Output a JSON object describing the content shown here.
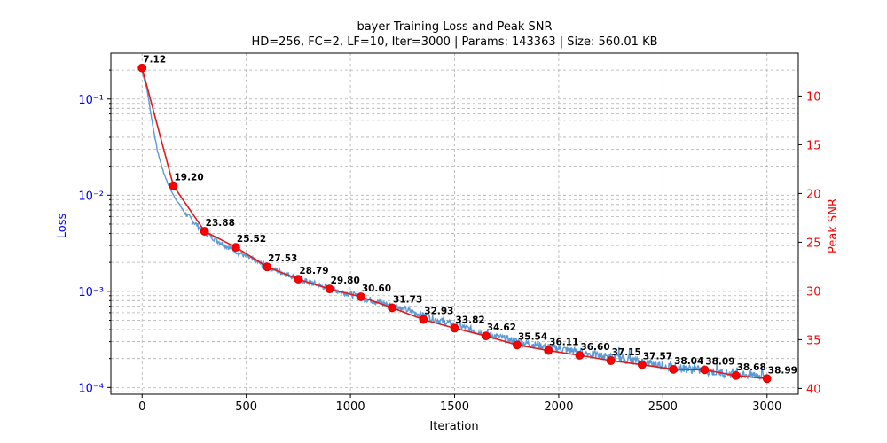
{
  "chart_data": {
    "type": "line",
    "title": "bayer Training Loss and Peak SNR",
    "subtitle": "HD=256, FC=2, LF=10, Iter=3000 | Params: 143363 | Size: 560.01 KB",
    "xlabel": "Iteration",
    "ylabel_left": "Loss",
    "ylabel_right": "Peak SNR",
    "xlim": [
      -150,
      3150
    ],
    "x_ticks": [
      0,
      500,
      1000,
      1500,
      2000,
      2500,
      3000
    ],
    "x_tick_labels": [
      "0",
      "500",
      "1000",
      "1500",
      "2000",
      "2500",
      "3000"
    ],
    "y_left_scale": "log",
    "y_left_lim": [
      8.5e-05,
      0.3
    ],
    "y_left_ticks": [
      0.1,
      0.01,
      0.001,
      0.0001
    ],
    "y_left_tick_labels": [
      "10⁻¹",
      "10⁻²",
      "10⁻³",
      "10⁻⁴"
    ],
    "y_right_lim": [
      40.6,
      5.6
    ],
    "y_right_inverted": true,
    "y_right_ticks": [
      10,
      15,
      20,
      25,
      30,
      35,
      40
    ],
    "y_right_tick_labels": [
      "10",
      "15",
      "20",
      "25",
      "30",
      "35",
      "40"
    ],
    "grid": true,
    "colors": {
      "loss": "#5b9bd5",
      "psnr": "#e31a1c",
      "left_axis": "#0000ff",
      "right_axis": "#ff0000"
    },
    "series": [
      {
        "axis": "left",
        "x": [
          0,
          25,
          50,
          75,
          100,
          125,
          150,
          200,
          250,
          300,
          400,
          500,
          600,
          700,
          800,
          900,
          1000,
          1100,
          1200,
          1300,
          1400,
          1500,
          1600,
          1700,
          1800,
          1900,
          2000,
          2100,
          2200,
          2300,
          2400,
          2500,
          2600,
          2700,
          2800,
          2900,
          3000
        ],
        "values": [
          0.2,
          0.12,
          0.055,
          0.028,
          0.018,
          0.013,
          0.01,
          0.0068,
          0.0052,
          0.0041,
          0.003,
          0.0023,
          0.0018,
          0.0015,
          0.00125,
          0.00107,
          0.00094,
          0.00081,
          0.00071,
          0.00061,
          0.00052,
          0.00045,
          0.00039,
          0.00034,
          0.0003,
          0.000275,
          0.000255,
          0.000235,
          0.000215,
          0.0002,
          0.000185,
          0.00017,
          0.000158,
          0.00015,
          0.000142,
          0.000136,
          0.000133
        ]
      },
      {
        "name": "Peak SNR",
        "axis": "right",
        "x": [
          0,
          150,
          300,
          450,
          600,
          750,
          900,
          1050,
          1200,
          1350,
          1500,
          1650,
          1800,
          1950,
          2100,
          2250,
          2400,
          2550,
          2700,
          2850,
          3000
        ],
        "values": [
          7.12,
          19.2,
          23.88,
          25.52,
          27.53,
          28.79,
          29.8,
          30.6,
          31.73,
          32.93,
          33.82,
          34.62,
          35.54,
          36.11,
          36.6,
          37.15,
          37.57,
          38.04,
          38.09,
          38.68,
          38.99
        ],
        "labels": [
          "7.12",
          "19.20",
          "23.88",
          "25.52",
          "27.53",
          "28.79",
          "29.80",
          "30.60",
          "31.73",
          "32.93",
          "33.82",
          "34.62",
          "35.54",
          "36.11",
          "36.60",
          "37.15",
          "37.57",
          "38.04",
          "38.09",
          "38.68",
          "38.99"
        ]
      }
    ]
  }
}
